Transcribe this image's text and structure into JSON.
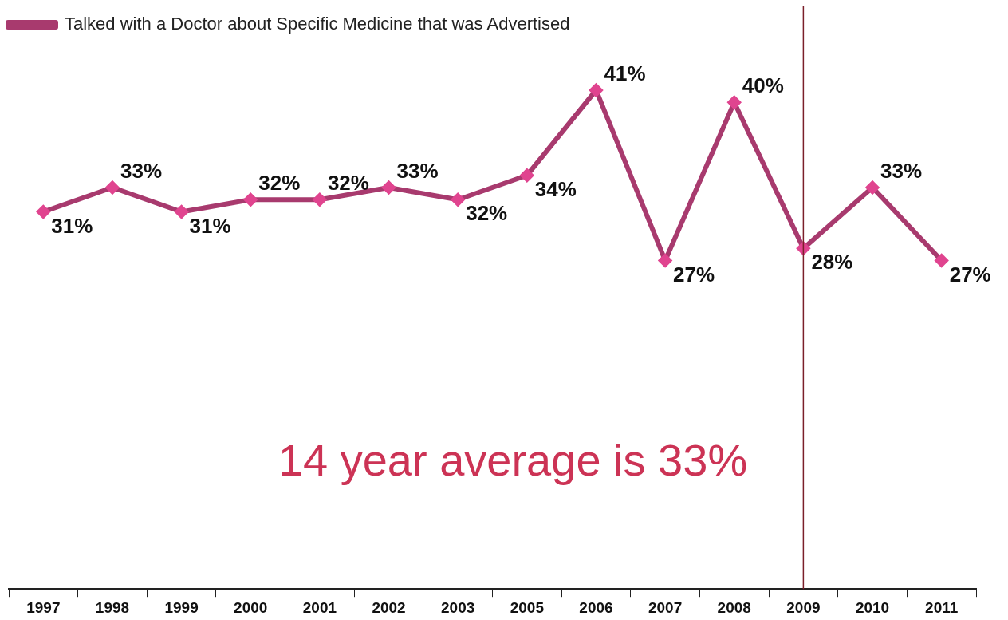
{
  "chart_data": {
    "type": "line",
    "categories": [
      "1997",
      "1998",
      "1999",
      "2000",
      "2001",
      "2002",
      "2003",
      "2005",
      "2006",
      "2007",
      "2008",
      "2009",
      "2010",
      "2011"
    ],
    "series": [
      {
        "name": "Talked with a Doctor about Specific Medicine that was Advertised",
        "color": "#a83a6e",
        "values": [
          31,
          33,
          31,
          32,
          32,
          33,
          32,
          34,
          41,
          27,
          40,
          28,
          33,
          27
        ],
        "value_labels": [
          "31%",
          "33%",
          "31%",
          "32%",
          "32%",
          "33%",
          "32%",
          "34%",
          "41%",
          "27%",
          "40%",
          "28%",
          "33%",
          "27%"
        ]
      }
    ],
    "marker": "diamond",
    "legend": "top left",
    "grid": false,
    "tick_labels": "x",
    "ref_lines": [
      {
        "axis": "x",
        "value": "2009",
        "color": "#7b1f2a"
      }
    ],
    "annotations": [
      "14 year average is 33%"
    ]
  }
}
